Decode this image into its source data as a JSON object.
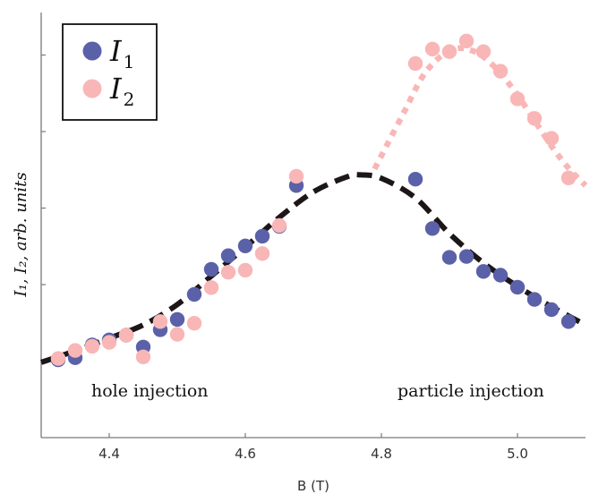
{
  "chart_data": {
    "type": "scatter",
    "xlabel": "B (T)",
    "ylabel": "I₁, I₂, arb. units",
    "x_ticks": [
      "4.4",
      "4.6",
      "4.8",
      "5.0"
    ],
    "x_tick_values": [
      4.4,
      4.6,
      4.8,
      5.0
    ],
    "xlim": [
      4.3,
      5.1
    ],
    "ylim": [
      0,
      100
    ],
    "grid": false,
    "legend_position": "top-left",
    "series": [
      {
        "name": "I1",
        "color": "#5b61a8",
        "x": [
          4.325,
          4.35,
          4.375,
          4.4,
          4.425,
          4.45,
          4.475,
          4.5,
          4.525,
          4.55,
          4.575,
          4.6,
          4.625,
          4.65,
          4.675,
          4.85,
          4.875,
          4.9,
          4.925,
          4.95,
          4.975,
          5.0,
          5.025,
          5.05,
          5.075
        ],
        "y": [
          18.3,
          18.8,
          21.8,
          23.0,
          24.1,
          21.3,
          25.4,
          27.8,
          33.7,
          39.6,
          42.8,
          45.1,
          47.4,
          49.7,
          59.3,
          60.8,
          49.2,
          42.4,
          42.6,
          39.1,
          38.2,
          35.4,
          32.5,
          30.1,
          27.3
        ]
      },
      {
        "name": "I2",
        "color": "#f9b6b6",
        "x": [
          4.325,
          4.35,
          4.375,
          4.4,
          4.425,
          4.45,
          4.475,
          4.5,
          4.525,
          4.55,
          4.575,
          4.6,
          4.625,
          4.65,
          4.675,
          4.85,
          4.875,
          4.9,
          4.925,
          4.95,
          4.975,
          5.0,
          5.025,
          5.05,
          5.075
        ],
        "y": [
          18.6,
          20.5,
          21.5,
          22.4,
          24.1,
          19.0,
          27.3,
          24.3,
          26.9,
          35.3,
          38.9,
          39.4,
          43.3,
          49.9,
          61.5,
          88.0,
          91.4,
          90.8,
          93.3,
          90.8,
          86.2,
          79.7,
          75.1,
          70.4,
          61.1
        ]
      }
    ],
    "fits": [
      {
        "series": "I1",
        "style": "dashed",
        "color": "#1c1617",
        "x": [
          4.3,
          4.35,
          4.4,
          4.45,
          4.5,
          4.55,
          4.6,
          4.65,
          4.7,
          4.75,
          4.77,
          4.8,
          4.85,
          4.9,
          4.95,
          5.0,
          5.05,
          5.1
        ],
        "y": [
          17.7,
          20.4,
          23.4,
          26.5,
          31.3,
          38.0,
          44.8,
          51.8,
          57.8,
          61.4,
          61.8,
          61.0,
          56.4,
          48.0,
          41.1,
          35.6,
          30.8,
          26.5
        ]
      },
      {
        "series": "I2",
        "style": "dotted",
        "color": "#f9b6b6",
        "x": [
          4.79,
          4.81,
          4.835,
          4.86,
          4.885,
          4.91,
          4.93,
          4.95,
          4.975,
          5.0,
          5.025,
          5.05,
          5.075,
          5.1
        ],
        "y": [
          63.2,
          69.4,
          77.1,
          84.8,
          89.4,
          91.5,
          91.2,
          89.6,
          85.7,
          80.6,
          74.6,
          68.6,
          63.4,
          59.3
        ]
      }
    ],
    "legend": [
      {
        "label": "I",
        "sub": "1",
        "series": "I1"
      },
      {
        "label": "I",
        "sub": "2",
        "series": "I2"
      }
    ],
    "annotations": [
      "hole injection",
      "particle injection"
    ]
  }
}
